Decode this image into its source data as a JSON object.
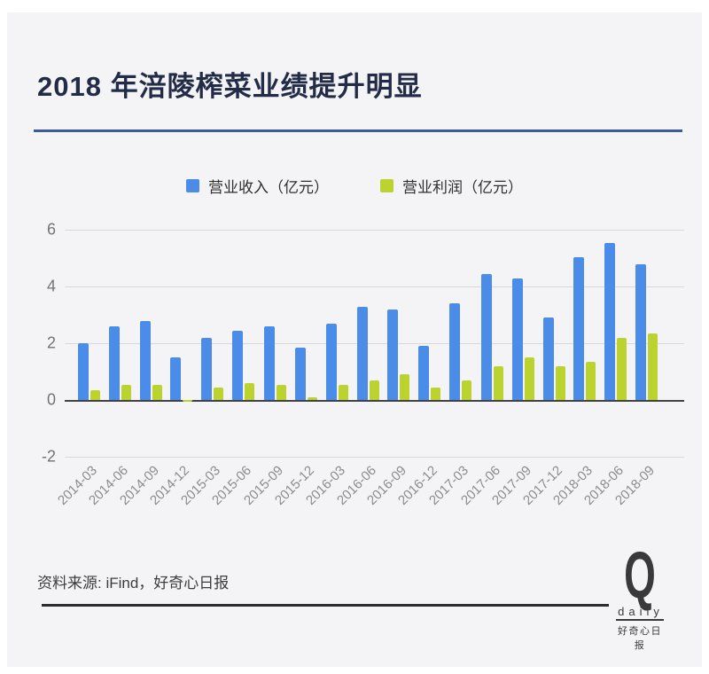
{
  "header": {
    "title": "2018 年涪陵榨菜业绩提升明显"
  },
  "footer": {
    "source_note": "资料来源: iFind，好奇心日报",
    "logo_letter": "Q",
    "logo_word": "daily",
    "logo_cn": "好奇心日报"
  },
  "colors": {
    "card_background": "#f4f4f6",
    "title_navy": "#232c47",
    "title_rule_blue": "#3d5a9b",
    "revenue_blue": "#4a8ce8",
    "profit_green": "#bcd32f",
    "gridline_gray": "#d9d9db",
    "zero_line_dark": "#424244",
    "axis_label_gray": "#8b8b8d",
    "footer_rule_dark": "#2b2b31"
  },
  "chart_data": {
    "type": "bar",
    "title": "2018 年涪陵榨菜业绩提升明显",
    "categories": [
      "2014-03",
      "2014-06",
      "2014-09",
      "2014-12",
      "2015-03",
      "2015-06",
      "2015-09",
      "2015-12",
      "2016-03",
      "2016-06",
      "2016-09",
      "2016-12",
      "2017-03",
      "2017-06",
      "2017-09",
      "2017-12",
      "2018-03",
      "2018-06",
      "2018-09"
    ],
    "series": [
      {
        "name": "营业收入（亿元）",
        "color": "#4a8ce8",
        "values": [
          2.0,
          2.6,
          2.8,
          1.5,
          2.2,
          2.45,
          2.6,
          1.85,
          2.7,
          3.3,
          3.2,
          1.9,
          3.4,
          4.45,
          4.3,
          2.9,
          5.05,
          5.55,
          4.8
        ]
      },
      {
        "name": "营业利润（亿元）",
        "color": "#bcd32f",
        "values": [
          0.35,
          0.55,
          0.55,
          -0.05,
          0.45,
          0.6,
          0.55,
          0.1,
          0.55,
          0.7,
          0.9,
          0.45,
          0.7,
          1.2,
          1.5,
          1.2,
          1.35,
          2.2,
          2.35
        ]
      }
    ],
    "yticks": [
      6,
      4,
      2,
      0,
      -2
    ],
    "ylim": [
      -2,
      6.44
    ],
    "grid": true,
    "legend_position": "top"
  }
}
